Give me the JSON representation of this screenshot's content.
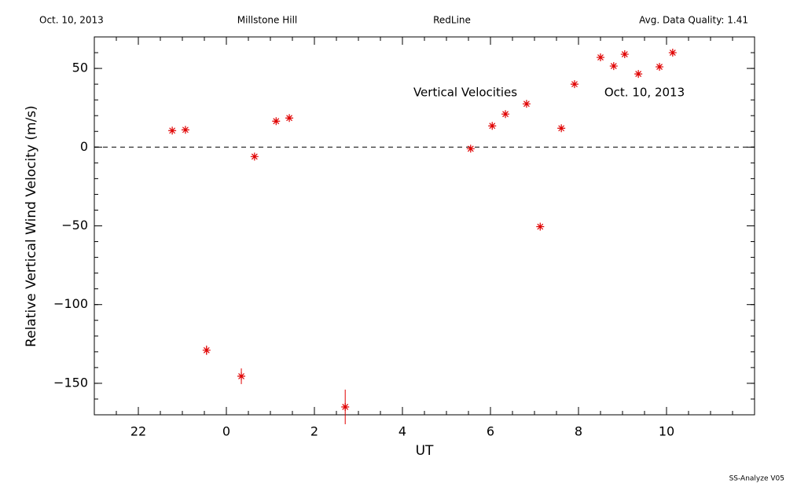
{
  "chart_data": {
    "type": "scatter",
    "header": [
      "Oct. 10, 2013",
      "Millstone Hill",
      "RedLine",
      "Avg. Data Quality: 1.41"
    ],
    "annotations": [
      "Vertical Velocities",
      "Oct. 10, 2013"
    ],
    "footer": "SS-Analyze V05",
    "xlabel": "UT",
    "ylabel": "Relative Vertical Wind Velocity (m/s)",
    "xlim": [
      -3,
      12
    ],
    "xticks": [
      {
        "value": -2,
        "label": "22"
      },
      0,
      2,
      4,
      6,
      8,
      10
    ],
    "xminor_step": 0.5,
    "ylim": [
      -170,
      70
    ],
    "yticks": [
      {
        "value": -150,
        "label": "−150"
      },
      {
        "value": -100,
        "label": "−100"
      },
      {
        "value": -50,
        "label": "−50"
      },
      0,
      50
    ],
    "yminor_step": 10,
    "reference_line": 0,
    "color": "#e00000",
    "x": [
      -1.23,
      -0.93,
      -0.45,
      0.34,
      0.64,
      1.13,
      1.43,
      2.7,
      5.55,
      6.04,
      6.34,
      6.82,
      7.13,
      7.61,
      7.91,
      8.5,
      8.8,
      9.05,
      9.36,
      9.84,
      10.14
    ],
    "values": [
      10.5,
      11,
      -129,
      -145.5,
      -6,
      16.5,
      18.5,
      -165,
      -1,
      13.5,
      21,
      27.5,
      -50.5,
      12,
      40,
      57,
      51.5,
      59,
      46.5,
      51,
      60
    ],
    "errors": [
      1,
      1,
      3,
      5,
      1,
      1,
      1,
      11,
      1,
      1,
      1,
      1,
      1,
      1,
      1,
      1,
      1,
      1,
      1,
      1,
      1
    ]
  }
}
